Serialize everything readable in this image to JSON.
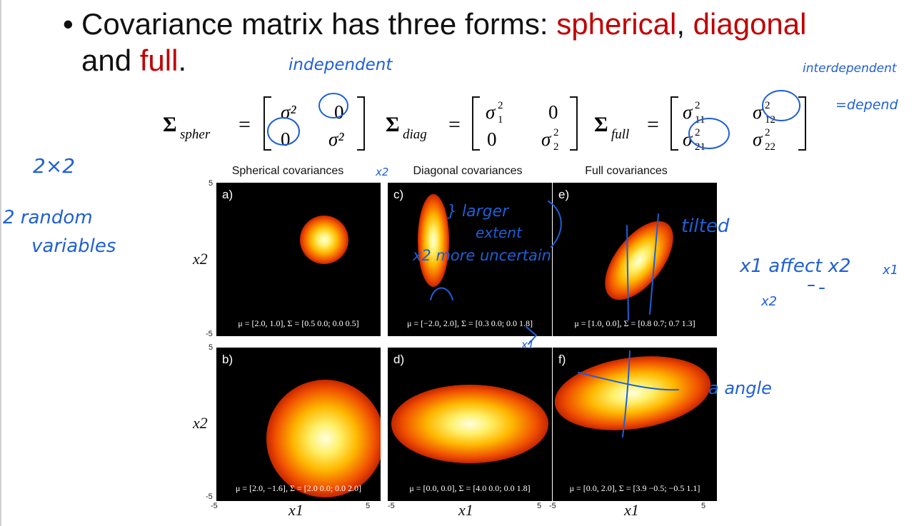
{
  "bullet": {
    "part1": "Covariance matrix has three forms: ",
    "spherical": "spherical",
    "comma": ", ",
    "diagonal": "diagonal",
    "part2": "and ",
    "full": "full",
    "period": "."
  },
  "plots": {
    "titles": [
      "Spherical covariances",
      "Diagonal covariances",
      "Full covariances"
    ],
    "panels": [
      {
        "letter": "a)",
        "mu": "[2.0, 1.0]",
        "sigma": "[0.5 0.0; 0.0 0.5]"
      },
      {
        "letter": "c)",
        "mu": "[−2.0, 2.0]",
        "sigma": "[0.3 0.0; 0.0 1.8]"
      },
      {
        "letter": "e)",
        "mu": "[1.0, 0.0]",
        "sigma": "[0.8 0.7; 0.7 1.3]"
      },
      {
        "letter": "b)",
        "mu": "[2.0, −1.6]",
        "sigma": "[2.0 0.0; 0.0 2.0]"
      },
      {
        "letter": "d)",
        "mu": "[0.0, 0.0]",
        "sigma": "[4.0 0.0; 0.0 1.8]"
      },
      {
        "letter": "f)",
        "mu": "[0.0, 2.0]",
        "sigma": "[3.9 −0.5; −0.5 1.1]"
      }
    ],
    "ticks": {
      "min": "-5",
      "max": "5"
    },
    "ylabel": "x2",
    "xlabel": "x1"
  },
  "annotations": {
    "independent": "independent",
    "interdependent": "interdependent",
    "depend": "=depend",
    "size": "2×2",
    "rv1": "2 random",
    "rv2": "variables",
    "x2_top": "x2",
    "larger1": "} larger",
    "larger2": "extent",
    "uncertain": "x2 more uncertain",
    "tilted": "tilted",
    "affect": "x1 affect x2",
    "x1_right": "x1",
    "x2_right": "x2",
    "x1_mid": "x1",
    "angle": "a angle"
  },
  "colors": {
    "accent": "#c00000",
    "ink": "#1f5fd6"
  }
}
